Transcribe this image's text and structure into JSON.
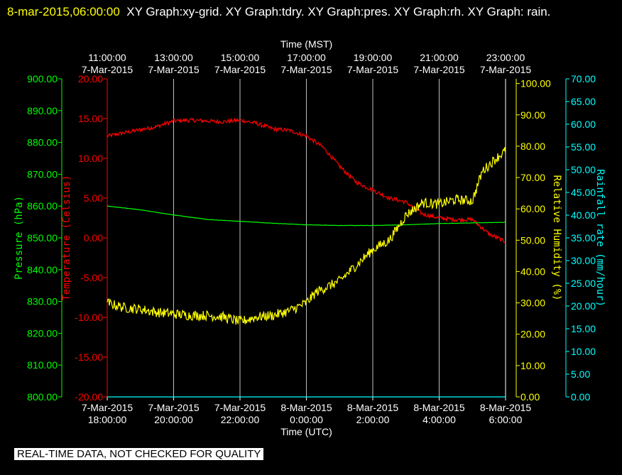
{
  "header": {
    "timestamp": "8-mar-2015,06:00:00",
    "graphs": "XY Graph:xy-grid.  XY Graph:tdry.  XY Graph:pres.  XY Graph:rh.  XY Graph: rain."
  },
  "footer": {
    "notice": "REAL-TIME DATA, NOT CHECKED FOR QUALITY"
  },
  "colors": {
    "background": "#000000",
    "grid": "#ffffff",
    "pressure": "#00ff00",
    "temperature": "#ff0000",
    "humidity": "#ffff00",
    "rainfall": "#00ffff",
    "axis_text": "#ffffff"
  },
  "chart_data": {
    "type": "line",
    "grid": true,
    "top_axis": {
      "label": "Time (MST)",
      "ticks": [
        [
          "11:00:00",
          "7-Mar-2015"
        ],
        [
          "13:00:00",
          "7-Mar-2015"
        ],
        [
          "15:00:00",
          "7-Mar-2015"
        ],
        [
          "17:00:00",
          "7-Mar-2015"
        ],
        [
          "19:00:00",
          "7-Mar-2015"
        ],
        [
          "21:00:00",
          "7-Mar-2015"
        ],
        [
          "23:00:00",
          "7-Mar-2015"
        ]
      ]
    },
    "bottom_axis": {
      "label": "Time (UTC)",
      "range_hours": [
        18,
        30
      ],
      "tick_hours": [
        18,
        20,
        22,
        24,
        26,
        28,
        30
      ],
      "ticks": [
        [
          "7-Mar-2015",
          "18:00:00"
        ],
        [
          "7-Mar-2015",
          "20:00:00"
        ],
        [
          "7-Mar-2015",
          "22:00:00"
        ],
        [
          "8-Mar-2015",
          "0:00:00"
        ],
        [
          "8-Mar-2015",
          "2:00:00"
        ],
        [
          "8-Mar-2015",
          "4:00:00"
        ],
        [
          "8-Mar-2015",
          "6:00:00"
        ]
      ]
    },
    "axes": {
      "pressure": {
        "label": "Pressure (hPa)",
        "range": [
          800,
          900
        ],
        "ticks": [
          "900.00",
          "890.00",
          "880.00",
          "870.00",
          "860.00",
          "850.00",
          "840.00",
          "830.00",
          "820.00",
          "810.00",
          "800.00"
        ]
      },
      "temperature": {
        "label": "Temperature (Celsius)",
        "range": [
          -20,
          20
        ],
        "ticks": [
          "20.00",
          "15.00",
          "10.00",
          "5.00",
          "0.00",
          "-5.00",
          "-10.00",
          "-15.00",
          "-20.00"
        ]
      },
      "humidity": {
        "label": "Relative Humidity (%)",
        "range": [
          0,
          101.5
        ],
        "ticks": [
          "100.00",
          "90.00",
          "80.00",
          "70.00",
          "60.00",
          "50.00",
          "40.00",
          "30.00",
          "20.00",
          "10.00",
          "0.00"
        ]
      },
      "rainfall": {
        "label": "Rainfall rate (mm/hour)",
        "range": [
          0,
          70
        ],
        "ticks": [
          "70.00",
          "65.00",
          "60.00",
          "55.00",
          "50.00",
          "45.00",
          "40.00",
          "35.00",
          "30.00",
          "25.00",
          "20.00",
          "15.00",
          "10.00",
          "5.00",
          "0.00"
        ]
      }
    },
    "series": [
      {
        "name": "Temperature",
        "axis": "temperature",
        "noise": 0.25,
        "x": [
          18,
          18.5,
          19,
          19.5,
          20,
          20.5,
          21,
          21.5,
          22,
          22.5,
          23,
          23.5,
          24,
          24.5,
          25,
          25.5,
          26,
          26.5,
          27,
          27.5,
          28,
          28.5,
          29,
          29.5,
          30
        ],
        "y": [
          12.8,
          13.2,
          13.6,
          14.0,
          14.7,
          14.8,
          14.7,
          14.6,
          14.8,
          14.4,
          13.7,
          13.5,
          12.8,
          11.4,
          9.0,
          7.0,
          6.0,
          5.0,
          4.5,
          3.0,
          2.5,
          2.3,
          2.3,
          0.5,
          -0.5
        ]
      },
      {
        "name": "Pressure",
        "axis": "pressure",
        "noise": 0.05,
        "x": [
          18,
          19,
          20,
          21,
          22,
          23,
          24,
          25,
          26,
          27,
          28,
          29,
          30
        ],
        "y": [
          860.0,
          858.8,
          857.2,
          855.8,
          855.2,
          854.6,
          854.1,
          853.9,
          853.9,
          854.1,
          854.5,
          854.7,
          854.9
        ]
      },
      {
        "name": "Relative Humidity",
        "axis": "humidity",
        "noise": 1.6,
        "x": [
          18,
          18.5,
          19,
          19.5,
          20,
          20.5,
          21,
          21.5,
          22,
          22.5,
          23,
          23.5,
          24,
          24.3,
          24.6,
          25,
          25.5,
          26,
          26.5,
          27,
          27.5,
          28,
          28.5,
          29,
          29.3,
          29.7,
          30
        ],
        "y": [
          30,
          28.5,
          28,
          27,
          26.5,
          26,
          26,
          25.5,
          24,
          25.5,
          26,
          27.5,
          30,
          33.5,
          35,
          37,
          42,
          47,
          50,
          58,
          62,
          61.5,
          63,
          62.5,
          72,
          76,
          78.5
        ]
      },
      {
        "name": "Rainfall rate",
        "axis": "rainfall",
        "noise": 0,
        "x": [
          18,
          30
        ],
        "y": [
          0,
          0
        ]
      }
    ]
  }
}
